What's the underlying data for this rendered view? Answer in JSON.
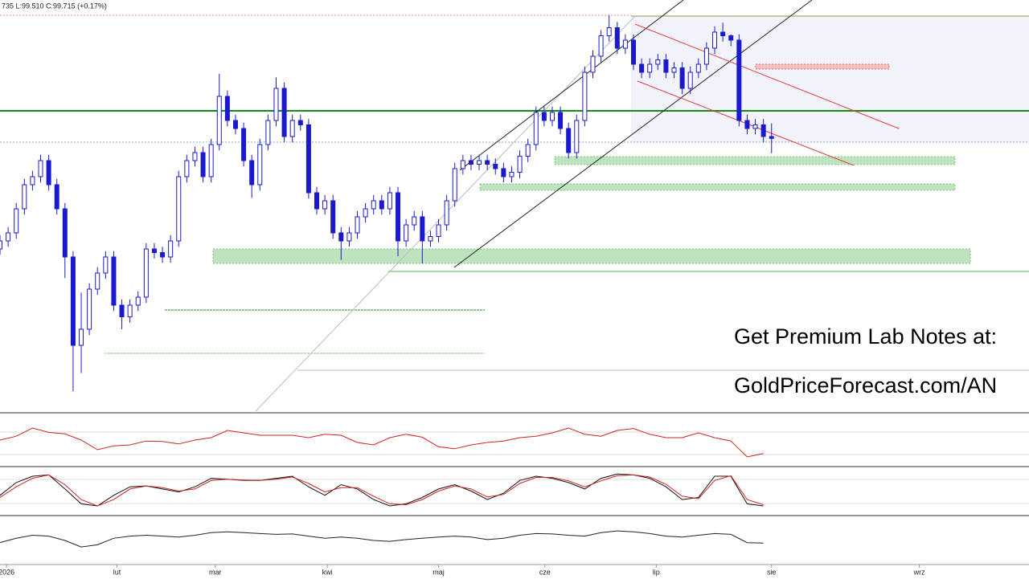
{
  "chart_data": {
    "type": "candlestick",
    "header": "735  L:99.510  C:99.715  (+0.17%)",
    "annotations": [
      "Get Premium Lab Notes at:",
      "GoldPriceForecast.com/AN"
    ],
    "up_color": "#ffffff",
    "down_color": "#1a1acc",
    "edge_color": "#1a1acc",
    "xlim": [
      0,
      126.7
    ],
    "ylim": [
      96.0,
      101.5
    ],
    "xticks": [
      {
        "value": 0.8,
        "label": "2026"
      },
      {
        "value": 14.4,
        "label": "lut"
      },
      {
        "value": 26.5,
        "label": "mar"
      },
      {
        "value": 40.3,
        "label": "kwi"
      },
      {
        "value": 54,
        "label": "maj"
      },
      {
        "value": 67.1,
        "label": "cze"
      },
      {
        "value": 80.8,
        "label": "lip"
      },
      {
        "value": 95,
        "label": "sie"
      },
      {
        "value": 113.2,
        "label": "wrz"
      }
    ],
    "open": [
      98.2,
      98.31,
      98.42,
      98.75,
      99.08,
      99.19,
      99.41,
      99.08,
      98.75,
      98.09,
      96.88,
      97.1,
      97.65,
      97.87,
      98.09,
      97.43,
      97.27,
      97.43,
      97.54,
      98.2,
      98.15,
      98.09,
      98.31,
      99.19,
      99.41,
      99.52,
      99.19,
      99.63,
      100.29,
      99.96,
      99.85,
      99.41,
      99.08,
      99.63,
      99.96,
      100.4,
      99.74,
      99.96,
      99.9,
      98.97,
      98.75,
      98.86,
      98.42,
      98.31,
      98.42,
      98.64,
      98.75,
      98.86,
      98.75,
      98.97,
      98.31,
      98.53,
      98.64,
      98.31,
      98.37,
      98.53,
      98.86,
      99.3,
      99.41,
      99.36,
      99.41,
      99.36,
      99.3,
      99.19,
      99.25,
      99.47,
      99.63,
      100.07,
      99.96,
      100.07,
      99.85,
      99.52,
      99.96,
      100.62,
      100.84,
      101.12,
      101.23,
      100.95,
      101.06,
      100.73,
      100.62,
      100.73,
      100.79,
      100.62,
      100.68,
      100.4,
      100.62,
      100.73,
      100.95,
      101.17,
      101.12,
      101.06,
      99.96,
      99.85,
      99.9,
      99.74
    ],
    "high": [
      98.39,
      98.5,
      98.83,
      99.16,
      99.27,
      99.49,
      99.49,
      99.16,
      98.83,
      98.17,
      97.6,
      97.73,
      97.95,
      98.17,
      98.17,
      97.51,
      97.51,
      97.62,
      98.28,
      98.28,
      98.23,
      98.39,
      99.27,
      99.49,
      99.6,
      99.6,
      99.71,
      100.6,
      100.37,
      100.04,
      99.93,
      99.49,
      99.71,
      100.04,
      100.55,
      100.48,
      100.04,
      100.04,
      99.98,
      99.05,
      98.94,
      98.94,
      98.5,
      98.5,
      98.72,
      98.83,
      98.94,
      98.94,
      99.05,
      99.05,
      98.61,
      98.72,
      98.72,
      98.45,
      98.61,
      98.94,
      99.38,
      99.49,
      99.49,
      99.49,
      99.49,
      99.44,
      99.38,
      99.33,
      99.55,
      99.71,
      100.15,
      100.15,
      100.15,
      100.15,
      99.93,
      100.04,
      100.7,
      100.92,
      101.2,
      101.4,
      101.31,
      101.14,
      101.14,
      100.81,
      100.81,
      100.87,
      100.87,
      100.76,
      100.76,
      100.7,
      100.81,
      101.03,
      101.25,
      101.3,
      101.14,
      101.14,
      100.04,
      99.98,
      99.98,
      99.92
    ],
    "low": [
      98.12,
      98.23,
      98.34,
      98.67,
      99.0,
      99.11,
      99.0,
      98.67,
      97.8,
      96.25,
      96.5,
      97.02,
      97.57,
      97.79,
      97.35,
      97.1,
      97.19,
      97.35,
      97.46,
      98.07,
      98.01,
      98.01,
      98.23,
      99.11,
      99.33,
      99.11,
      99.11,
      99.55,
      99.88,
      99.77,
      99.33,
      98.9,
      99.0,
      99.55,
      99.88,
      99.66,
      99.66,
      99.82,
      98.89,
      98.67,
      98.67,
      98.34,
      98.05,
      98.23,
      98.34,
      98.56,
      98.67,
      98.67,
      98.67,
      98.1,
      98.23,
      98.45,
      98.0,
      98.23,
      98.29,
      98.45,
      98.78,
      99.22,
      99.28,
      99.28,
      99.28,
      99.22,
      99.11,
      99.11,
      99.17,
      99.39,
      99.55,
      99.88,
      99.88,
      99.77,
      99.44,
      99.44,
      99.88,
      100.54,
      100.76,
      101.04,
      100.87,
      100.87,
      100.65,
      100.54,
      100.54,
      100.65,
      100.54,
      100.54,
      100.32,
      100.32,
      100.54,
      100.65,
      100.87,
      101.04,
      100.98,
      99.88,
      99.77,
      99.77,
      99.66,
      99.51
    ],
    "close": [
      98.31,
      98.42,
      98.75,
      99.08,
      99.19,
      99.41,
      99.08,
      98.75,
      98.09,
      96.88,
      97.1,
      97.65,
      97.87,
      98.09,
      97.43,
      97.27,
      97.43,
      97.54,
      98.2,
      98.15,
      98.09,
      98.31,
      99.19,
      99.41,
      99.52,
      99.19,
      99.63,
      100.29,
      99.96,
      99.85,
      99.41,
      99.08,
      99.63,
      99.96,
      100.4,
      99.74,
      99.96,
      99.9,
      98.97,
      98.75,
      98.86,
      98.42,
      98.31,
      98.42,
      98.64,
      98.75,
      98.86,
      98.75,
      98.97,
      98.31,
      98.53,
      98.64,
      98.31,
      98.37,
      98.53,
      98.86,
      99.3,
      99.41,
      99.36,
      99.41,
      99.36,
      99.3,
      99.19,
      99.25,
      99.47,
      99.63,
      100.07,
      99.96,
      100.07,
      99.85,
      99.52,
      99.96,
      100.62,
      100.84,
      101.12,
      101.23,
      100.95,
      101.06,
      100.73,
      100.62,
      100.73,
      100.79,
      100.62,
      100.68,
      100.4,
      100.62,
      100.73,
      100.95,
      101.17,
      101.12,
      101.06,
      99.96,
      99.85,
      99.9,
      99.74,
      99.715
    ],
    "indicators": [
      {
        "ylim": [
          0,
          100
        ],
        "series": [
          {
            "color": "#d42020",
            "values": [
              50,
              58,
              75,
              66,
              63,
              50,
              30,
              38,
              40,
              48,
              47,
              42,
              50,
              55,
              70,
              65,
              60,
              60,
              60,
              55,
              62,
              60,
              45,
              40,
              55,
              62,
              56,
              36,
              32,
              40,
              45,
              48,
              55,
              58,
              65,
              75,
              62,
              58,
              70,
              74,
              62,
              55,
              55,
              65,
              55,
              48,
              15,
              22
            ]
          }
        ]
      },
      {
        "ylim": [
          0,
          100
        ],
        "series": [
          {
            "color": "#111111",
            "values": [
              40,
              70,
              85,
              88,
              55,
              20,
              15,
              40,
              60,
              62,
              55,
              48,
              60,
              80,
              78,
              75,
              75,
              80,
              85,
              60,
              40,
              65,
              55,
              30,
              15,
              20,
              35,
              55,
              65,
              50,
              30,
              45,
              75,
              85,
              80,
              70,
              55,
              80,
              90,
              88,
              80,
              60,
              30,
              35,
              85,
              85,
              20,
              15
            ]
          },
          {
            "color": "#d42020",
            "values": [
              35,
              60,
              80,
              88,
              65,
              30,
              15,
              30,
              55,
              62,
              58,
              50,
              55,
              75,
              78,
              76,
              75,
              78,
              83,
              68,
              48,
              58,
              58,
              38,
              20,
              18,
              30,
              50,
              62,
              55,
              36,
              42,
              68,
              82,
              82,
              74,
              60,
              74,
              86,
              88,
              83,
              66,
              38,
              32,
              75,
              86,
              30,
              18
            ]
          }
        ]
      },
      {
        "ylim": [
          0,
          100
        ],
        "series": [
          {
            "color": "#222222",
            "values": [
              45,
              55,
              62,
              60,
              50,
              35,
              40,
              55,
              60,
              62,
              60,
              58,
              62,
              68,
              70,
              68,
              66,
              64,
              65,
              60,
              55,
              58,
              55,
              50,
              48,
              52,
              55,
              58,
              60,
              58,
              52,
              55,
              62,
              66,
              65,
              62,
              60,
              68,
              72,
              70,
              66,
              60,
              58,
              62,
              66,
              64,
              45,
              44
            ]
          }
        ]
      }
    ]
  }
}
